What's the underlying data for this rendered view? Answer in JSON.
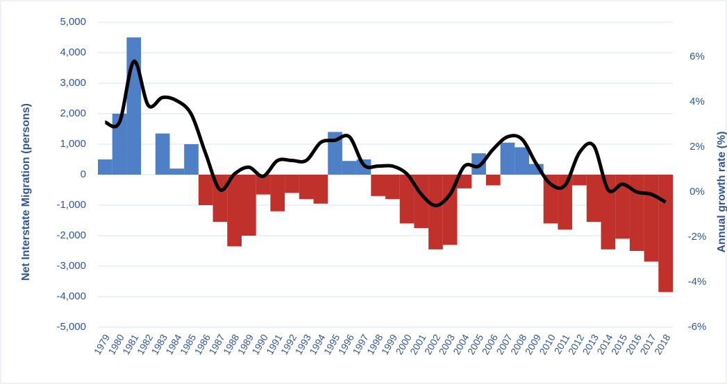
{
  "chart_data": {
    "type": "bar-line",
    "y_label": "Net Interstate Migration (persons)",
    "y2_label": "Annual growth rate (%)",
    "categories": [
      "1979",
      "1980",
      "1981",
      "1982",
      "1983",
      "1984",
      "1985",
      "1986",
      "1987",
      "1988",
      "1989",
      "1990",
      "1991",
      "1992",
      "1993",
      "1994",
      "1995",
      "1996",
      "1997",
      "1998",
      "1999",
      "2000",
      "2001",
      "2002",
      "2003",
      "2004",
      "2005",
      "2006",
      "2007",
      "2008",
      "2009",
      "2010",
      "2011",
      "2012",
      "2013",
      "2014",
      "2015",
      "2016",
      "2017",
      "2018"
    ],
    "bars": {
      "colors": {
        "positive": "#4f7fc4",
        "negative": "#c0312c"
      },
      "values": [
        500,
        2000,
        4500,
        0,
        1350,
        200,
        1000,
        -1000,
        -1550,
        -2350,
        -2000,
        -650,
        -1200,
        -600,
        -800,
        -950,
        1400,
        450,
        500,
        -700,
        -800,
        -1600,
        -1750,
        -2450,
        -2300,
        -450,
        700,
        -350,
        1050,
        900,
        350,
        -1600,
        -1800,
        -350,
        -1550,
        -2450,
        -2100,
        -2500,
        -2850,
        -3850
      ]
    },
    "line": {
      "color": "#000000",
      "axis": "y2",
      "values": [
        3.1,
        3.1,
        5.8,
        3.85,
        4.2,
        4.05,
        3.45,
        1.7,
        0.1,
        0.8,
        1.1,
        0.7,
        1.4,
        1.4,
        1.4,
        2.2,
        2.3,
        2.45,
        1.2,
        1.15,
        1.15,
        0.8,
        -0.1,
        -0.6,
        -0.1,
        1.15,
        1.15,
        1.9,
        2.45,
        2.35,
        1.25,
        0.35,
        0.3,
        1.75,
        2.05,
        0.1,
        0.35,
        0,
        -0.1,
        -0.45
      ]
    },
    "ylim": [
      -5000,
      5000
    ],
    "yticks": [
      {
        "value": -5000,
        "label": "-5,000"
      },
      {
        "value": -4000,
        "label": "-4,000"
      },
      {
        "value": -3000,
        "label": "-3,000"
      },
      {
        "value": -2000,
        "label": "-2,000"
      },
      {
        "value": -1000,
        "label": "-1,000"
      },
      0,
      {
        "value": 1000,
        "label": "1,000"
      },
      {
        "value": 2000,
        "label": "2,000"
      },
      {
        "value": 3000,
        "label": "3,000"
      },
      {
        "value": 4000,
        "label": "4,000"
      },
      {
        "value": 5000,
        "label": "5,000"
      }
    ],
    "y2lim": [
      -6,
      7.54
    ],
    "y2ticks": [
      {
        "value": -6,
        "label": "-6%"
      },
      {
        "value": -4,
        "label": "-4%"
      },
      {
        "value": -2,
        "label": "-2%"
      },
      {
        "value": 0,
        "label": "0%"
      },
      {
        "value": 2,
        "label": "2%"
      },
      {
        "value": 4,
        "label": "4%"
      },
      {
        "value": 6,
        "label": "6%"
      }
    ],
    "grid": true
  }
}
